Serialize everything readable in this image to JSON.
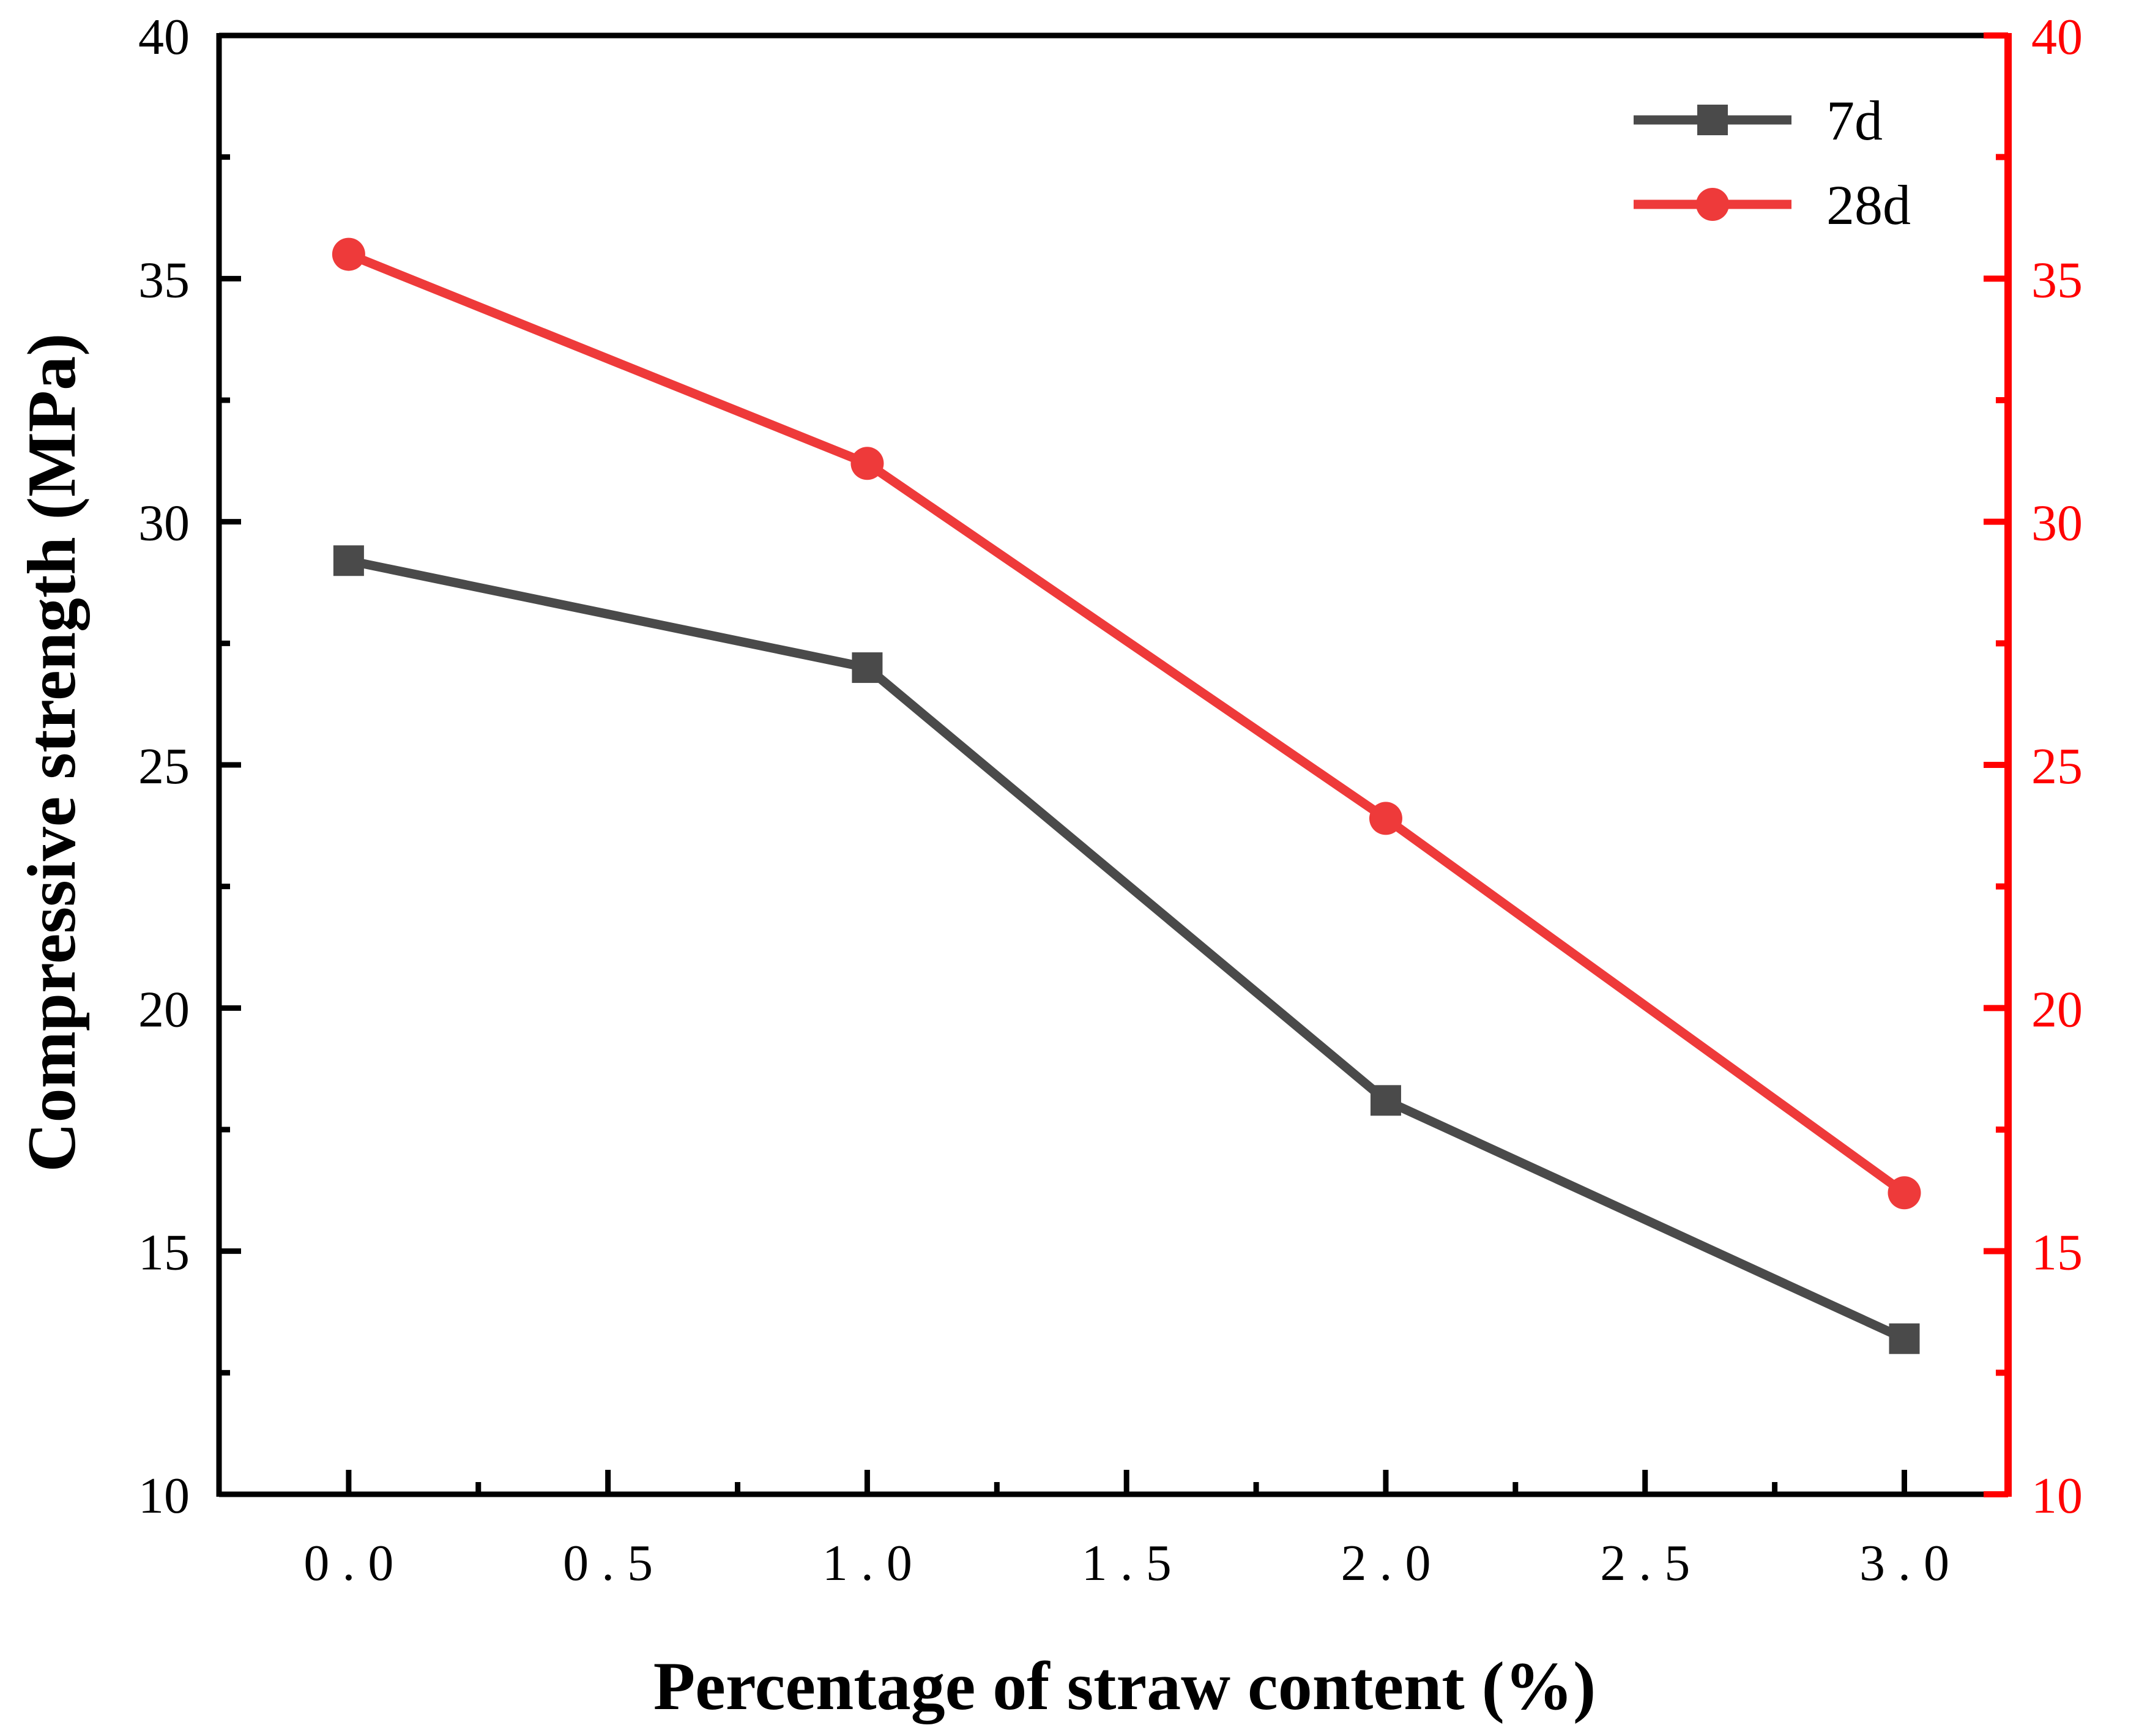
{
  "chart_data": {
    "type": "line",
    "title": "",
    "xlabel": "Percentage of straw content (%)",
    "ylabel": "Compressive strength (MPa)",
    "xlim": [
      -0.25,
      3.2
    ],
    "ylim": [
      10,
      40
    ],
    "y2lim": [
      10,
      40
    ],
    "xticks": [
      "0.0",
      "0.5",
      "1.0",
      "1.5",
      "2.0",
      "2.5",
      "3.0"
    ],
    "xtick_values": [
      0,
      0.5,
      1.0,
      1.5,
      2.0,
      2.5,
      3.0
    ],
    "yticks": [
      "10",
      "15",
      "20",
      "25",
      "30",
      "35",
      "40"
    ],
    "ytick_values": [
      10,
      15,
      20,
      25,
      30,
      35,
      40
    ],
    "y2ticks": [
      "10",
      "15",
      "20",
      "25",
      "30",
      "35",
      "40"
    ],
    "legend_position": "top-right",
    "grid": false,
    "x": [
      0,
      1,
      2,
      3
    ],
    "series": [
      {
        "name": "7d",
        "axis": "left",
        "color": "#4a4a4a",
        "marker": "square",
        "values": [
          29.2,
          27.0,
          18.1,
          13.2
        ]
      },
      {
        "name": "28d",
        "axis": "right",
        "color": "#ee3a3a",
        "marker": "circle",
        "values": [
          35.5,
          31.2,
          23.9,
          16.2
        ]
      }
    ],
    "colors": {
      "left_axis": "#000000",
      "right_axis": "#ff0000"
    }
  }
}
